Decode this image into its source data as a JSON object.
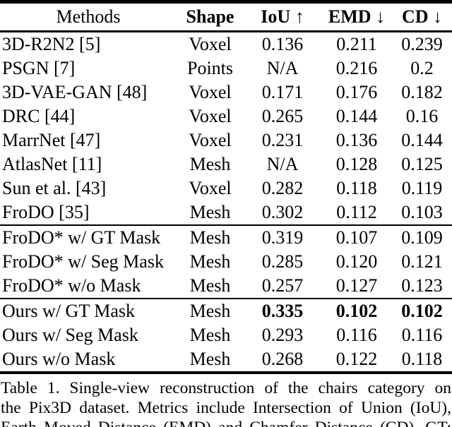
{
  "colors": {
    "text": "#000000",
    "background": "#ffffff",
    "rule": "#000000"
  },
  "table": {
    "headers": [
      {
        "label": "Methods",
        "bold": false,
        "arrow": ""
      },
      {
        "label": "Shape",
        "bold": true,
        "arrow": ""
      },
      {
        "label": "IoU",
        "bold": true,
        "arrow": "↑"
      },
      {
        "label": "EMD",
        "bold": true,
        "arrow": "↓"
      },
      {
        "label": "CD",
        "bold": true,
        "arrow": "↓"
      }
    ],
    "groups": [
      {
        "rows": [
          {
            "method": "3D-R2N2 [5]",
            "shape": "Voxel",
            "iou": "0.136",
            "emd": "0.211",
            "cd": "0.239",
            "bold_values": false
          },
          {
            "method": "PSGN [7]",
            "shape": "Points",
            "iou": "N/A",
            "emd": "0.216",
            "cd": "0.2",
            "bold_values": false
          },
          {
            "method": "3D-VAE-GAN [48]",
            "shape": "Voxel",
            "iou": "0.171",
            "emd": "0.176",
            "cd": "0.182",
            "bold_values": false
          },
          {
            "method": "DRC [44]",
            "shape": "Voxel",
            "iou": "0.265",
            "emd": "0.144",
            "cd": "0.16",
            "bold_values": false
          },
          {
            "method": "MarrNet [47]",
            "shape": "Voxel",
            "iou": "0.231",
            "emd": "0.136",
            "cd": "0.144",
            "bold_values": false
          },
          {
            "method": "AtlasNet [11]",
            "shape": "Mesh",
            "iou": "N/A",
            "emd": "0.128",
            "cd": "0.125",
            "bold_values": false
          },
          {
            "method": "Sun et al. [43]",
            "shape": "Voxel",
            "iou": "0.282",
            "emd": "0.118",
            "cd": "0.119",
            "bold_values": false
          },
          {
            "method": "FroDO [35]",
            "shape": "Mesh",
            "iou": "0.302",
            "emd": "0.112",
            "cd": "0.103",
            "bold_values": false
          }
        ]
      },
      {
        "rows": [
          {
            "method": "FroDO* w/ GT Mask",
            "shape": "Mesh",
            "iou": "0.319",
            "emd": "0.107",
            "cd": "0.109",
            "bold_values": false
          },
          {
            "method": "FroDO* w/ Seg Mask",
            "shape": "Mesh",
            "iou": "0.285",
            "emd": "0.120",
            "cd": "0.121",
            "bold_values": false
          },
          {
            "method": "FroDO* w/o Mask",
            "shape": "Mesh",
            "iou": "0.257",
            "emd": "0.127",
            "cd": "0.123",
            "bold_values": false
          }
        ]
      },
      {
        "rows": [
          {
            "method": "Ours w/ GT Mask",
            "shape": "Mesh",
            "iou": "0.335",
            "emd": "0.102",
            "cd": "0.102",
            "bold_values": true
          },
          {
            "method": "Ours w/ Seg Mask",
            "shape": "Mesh",
            "iou": "0.293",
            "emd": "0.116",
            "cd": "0.116",
            "bold_values": false
          },
          {
            "method": "Ours w/o Mask",
            "shape": "Mesh",
            "iou": "0.268",
            "emd": "0.122",
            "cd": "0.118",
            "bold_values": false
          }
        ]
      }
    ]
  },
  "caption": {
    "lines": [
      "Table 1. Single-view reconstruction of the chairs category on",
      "the Pix3D dataset.  Metrics include Intersection of Union (IoU),",
      "Earth Moved Distance (EMD) and Chamfer Distance (CD). GT:"
    ]
  }
}
